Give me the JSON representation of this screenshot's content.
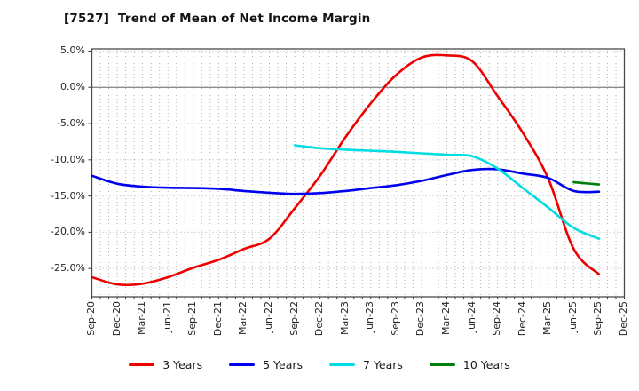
{
  "title": "[7527]  Trend of Mean of Net Income Margin",
  "chart_data": {
    "type": "line",
    "title": "[7527]  Trend of Mean of Net Income Margin",
    "categories": [
      "Sep-20",
      "Dec-20",
      "Mar-21",
      "Jun-21",
      "Sep-21",
      "Dec-21",
      "Mar-22",
      "Jun-22",
      "Sep-22",
      "Dec-22",
      "Mar-23",
      "Jun-23",
      "Sep-23",
      "Dec-23",
      "Mar-24",
      "Jun-24",
      "Sep-24",
      "Dec-24",
      "Mar-25",
      "Jun-25",
      "Sep-25",
      "Dec-25"
    ],
    "xlabel": "",
    "ylabel": "",
    "y_ticks": [
      5,
      0,
      -5,
      -10,
      -15,
      -20,
      -25
    ],
    "y_tick_labels": [
      "5.0%",
      "0.0%",
      "-5.0%",
      "-10.0%",
      "-15.0%",
      "-20.0%",
      "-25.0%"
    ],
    "ylim": [
      -28.9,
      5.3
    ],
    "grid": true,
    "legend_position": "bottom",
    "series": [
      {
        "name": "3 Years",
        "color": "#ee0000",
        "values": [
          -26.2,
          -27.2,
          -27.1,
          -26.2,
          -24.9,
          -23.8,
          -22.3,
          -20.9,
          -16.7,
          -12.2,
          -6.9,
          -2.2,
          1.7,
          4.1,
          4.4,
          3.6,
          -1.2,
          -6.3,
          -12.6,
          -22.3,
          -25.8,
          null
        ]
      },
      {
        "name": "5 Years",
        "color": "#0000ee",
        "values": [
          -12.2,
          -13.3,
          -13.7,
          -13.85,
          -13.9,
          -14.0,
          -14.3,
          -14.55,
          -14.7,
          -14.6,
          -14.3,
          -13.9,
          -13.5,
          -12.9,
          -12.1,
          -11.4,
          -11.3,
          -11.9,
          -12.5,
          -14.3,
          -14.4,
          null
        ]
      },
      {
        "name": "7 Years",
        "color": "#00dde2",
        "values": [
          null,
          null,
          null,
          null,
          null,
          null,
          null,
          null,
          -8.0,
          -8.4,
          -8.6,
          -8.75,
          -8.9,
          -9.1,
          -9.3,
          -9.5,
          -11.2,
          -13.9,
          -16.6,
          -19.4,
          -20.9,
          null
        ]
      },
      {
        "name": "10 Years",
        "color": "#007f0e",
        "values": [
          null,
          null,
          null,
          null,
          null,
          null,
          null,
          null,
          null,
          null,
          null,
          null,
          null,
          null,
          null,
          null,
          null,
          null,
          null,
          -13.1,
          -13.4,
          null
        ]
      }
    ],
    "zero_line_color": "#7f7f7f",
    "grid_color": "#b0b0b0",
    "frame_color": "#4a4a4a"
  }
}
